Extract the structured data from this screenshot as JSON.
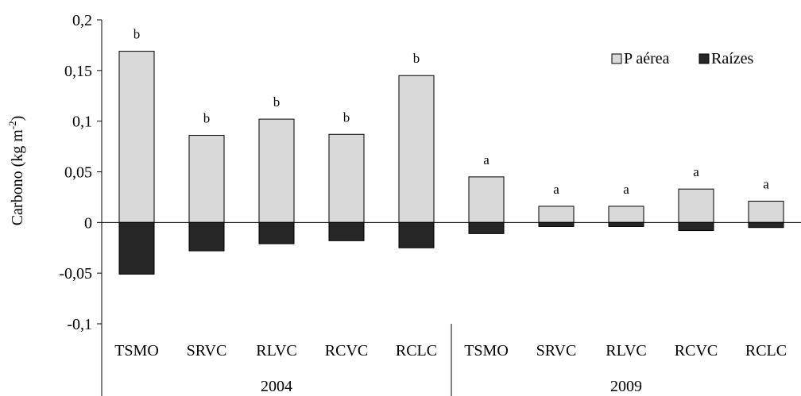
{
  "chart_data": {
    "type": "bar",
    "stacked": "diverging",
    "ylabel_main": "Carbono (kg m",
    "ylabel_sup": "-2",
    "ylabel_close": ")",
    "ylim": [
      -0.1,
      0.2
    ],
    "yticks": [
      -0.1,
      -0.05,
      0,
      0.05,
      0.1,
      0.15,
      0.2
    ],
    "ytick_labels": [
      "-0,1",
      "-0,05",
      "0",
      "0,05",
      "0,1",
      "0,15",
      "0,2"
    ],
    "categories": [
      "TSMO",
      "SRVC",
      "RLVC",
      "RCVC",
      "RCLC",
      "TSMO",
      "SRVC",
      "RLVC",
      "RCVC",
      "RCLC"
    ],
    "groups": [
      {
        "label": "2004",
        "start": 0,
        "end": 4
      },
      {
        "label": "2009",
        "start": 5,
        "end": 9
      }
    ],
    "series": [
      {
        "name": "P aérea",
        "color": "#d9d9d9",
        "values": [
          0.169,
          0.086,
          0.102,
          0.087,
          0.145,
          0.045,
          0.016,
          0.016,
          0.033,
          0.021
        ]
      },
      {
        "name": "Raízes",
        "color": "#262626",
        "values": [
          -0.051,
          -0.028,
          -0.021,
          -0.018,
          -0.025,
          -0.011,
          -0.004,
          -0.004,
          -0.008,
          -0.005
        ]
      }
    ],
    "annotations": [
      "b",
      "b",
      "b",
      "b",
      "b",
      "a",
      "a",
      "a",
      "a",
      "a"
    ],
    "legend_position": "top-right",
    "grid": false
  }
}
